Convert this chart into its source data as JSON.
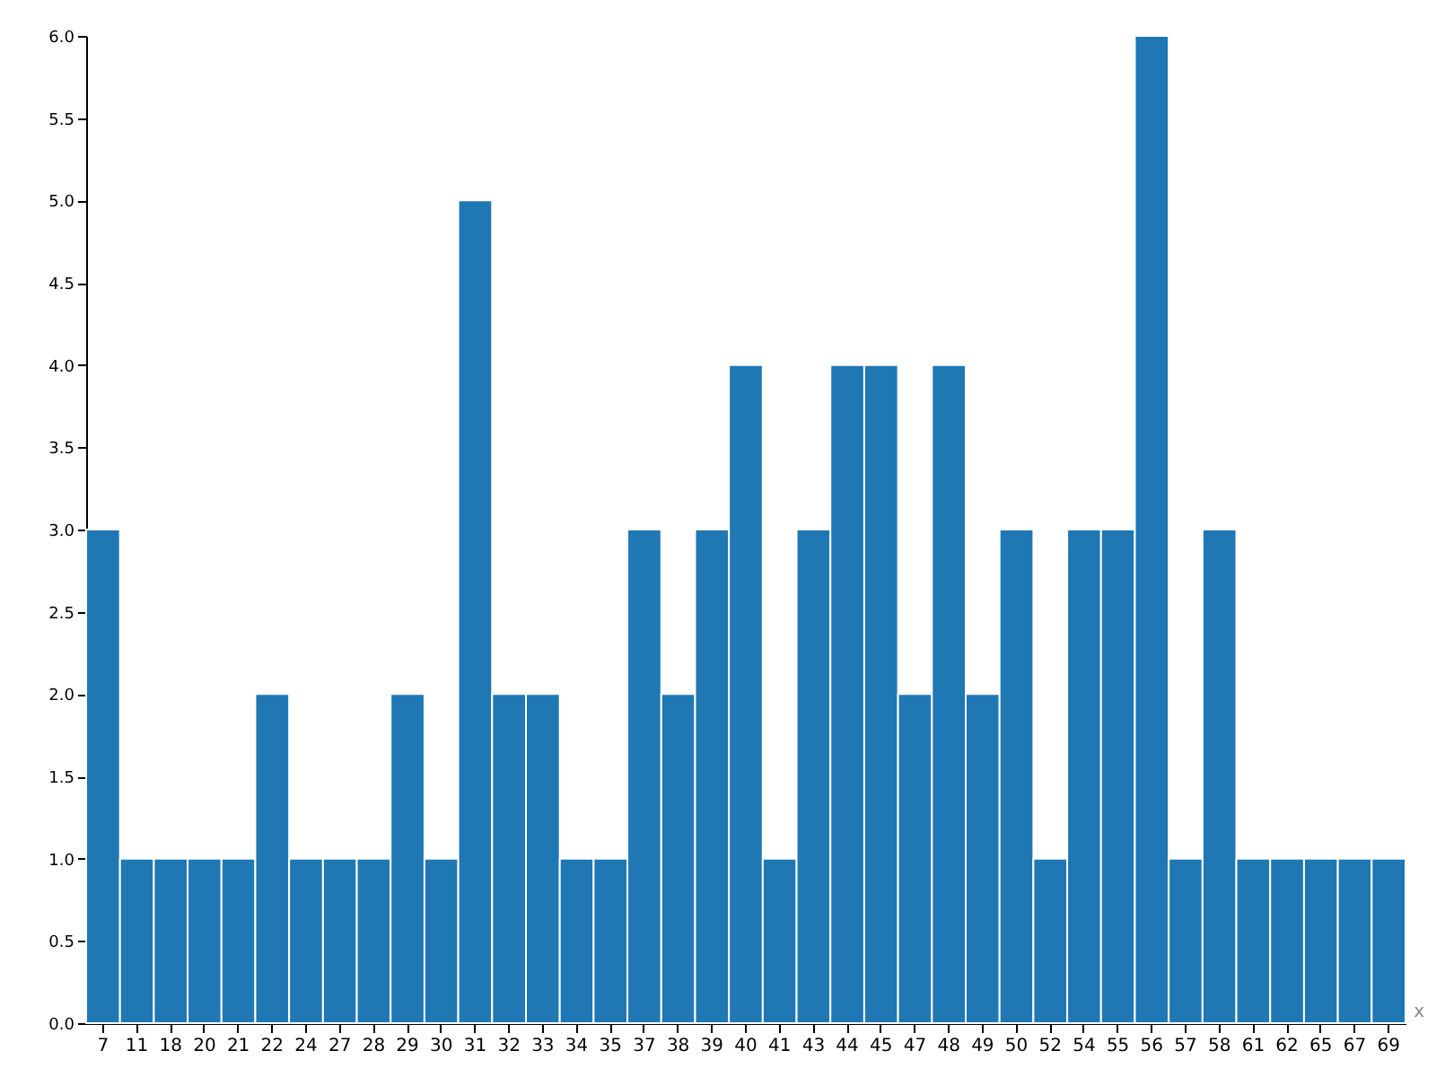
{
  "chart_data": {
    "type": "bar",
    "xlabel": "x",
    "categories": [
      "7",
      "11",
      "18",
      "20",
      "21",
      "22",
      "24",
      "27",
      "28",
      "29",
      "30",
      "31",
      "32",
      "33",
      "34",
      "35",
      "37",
      "38",
      "39",
      "40",
      "41",
      "43",
      "44",
      "45",
      "47",
      "48",
      "49",
      "50",
      "52",
      "54",
      "55",
      "56",
      "57",
      "58",
      "61",
      "62",
      "65",
      "67",
      "69"
    ],
    "values": [
      3,
      1,
      1,
      1,
      1,
      2,
      1,
      1,
      1,
      2,
      1,
      5,
      2,
      2,
      1,
      1,
      3,
      2,
      3,
      4,
      1,
      3,
      4,
      4,
      2,
      4,
      2,
      3,
      1,
      3,
      3,
      6,
      1,
      3,
      1,
      1,
      1,
      1,
      1
    ],
    "color": "#1f77b4",
    "ylim": [
      0,
      6
    ],
    "yticks": [
      {
        "value": 0,
        "label": "0.0"
      },
      {
        "value": 0.5,
        "label": "0.5"
      },
      {
        "value": 1,
        "label": "1.0"
      },
      {
        "value": 1.5,
        "label": "1.5"
      },
      {
        "value": 2,
        "label": "2.0"
      },
      {
        "value": 2.5,
        "label": "2.5"
      },
      {
        "value": 3,
        "label": "3.0"
      },
      {
        "value": 3.5,
        "label": "3.5"
      },
      {
        "value": 4,
        "label": "4.0"
      },
      {
        "value": 4.5,
        "label": "4.5"
      },
      {
        "value": 5,
        "label": "5.0"
      },
      {
        "value": 5.5,
        "label": "5.5"
      },
      {
        "value": 6,
        "label": "6.0"
      }
    ],
    "grid": false
  }
}
